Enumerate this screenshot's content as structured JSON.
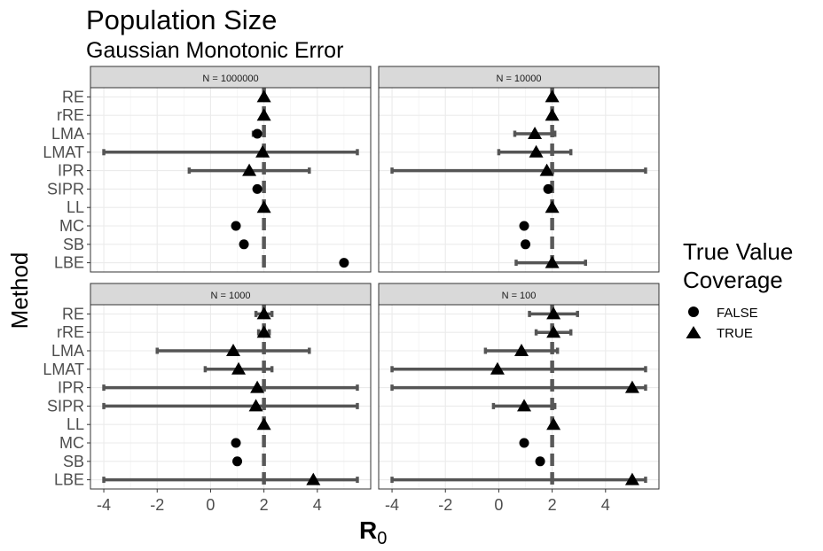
{
  "chart_data": {
    "type": "scatter",
    "title": "Population Size",
    "subtitle": "Gaussian Monotonic Error",
    "xlabel_main": "R",
    "xlabel_sub": "0",
    "ylabel": "Method",
    "xlim": [
      -4.5,
      6.0
    ],
    "x_ticks": [
      -4,
      -2,
      0,
      2,
      4
    ],
    "true_value": 2,
    "grid": true,
    "legend": {
      "title_line1": "True Value",
      "title_line2": "Coverage",
      "placement": "right",
      "items": [
        {
          "label": "FALSE",
          "shape": "circle"
        },
        {
          "label": "TRUE",
          "shape": "triangle"
        }
      ]
    },
    "methods": [
      "RE",
      "rRE",
      "LMA",
      "LMAT",
      "IPR",
      "SIPR",
      "LL",
      "MC",
      "SB",
      "LBE"
    ],
    "panels": [
      {
        "strip": "N = 1000000",
        "rows": [
          {
            "method": "RE",
            "est": 2.0,
            "lo": 2.0,
            "hi": 2.0,
            "coverage": true
          },
          {
            "method": "rRE",
            "est": 2.0,
            "lo": 2.0,
            "hi": 2.0,
            "coverage": true
          },
          {
            "method": "LMA",
            "est": 1.75,
            "lo": 1.6,
            "hi": 2.0,
            "coverage": false
          },
          {
            "method": "LMAT",
            "est": 1.95,
            "lo": -4.0,
            "hi": 5.5,
            "coverage": true
          },
          {
            "method": "IPR",
            "est": 1.45,
            "lo": -0.8,
            "hi": 3.7,
            "coverage": true
          },
          {
            "method": "SIPR",
            "est": 1.75,
            "lo": 1.75,
            "hi": 2.0,
            "coverage": false
          },
          {
            "method": "LL",
            "est": 2.0,
            "lo": 2.0,
            "hi": 2.0,
            "coverage": true
          },
          {
            "method": "MC",
            "est": 0.95,
            "lo": 0.95,
            "hi": 0.95,
            "coverage": false
          },
          {
            "method": "SB",
            "est": 1.25,
            "lo": 1.25,
            "hi": 1.25,
            "coverage": false
          },
          {
            "method": "LBE",
            "est": 5.0,
            "lo": 5.0,
            "hi": 5.0,
            "coverage": false
          }
        ]
      },
      {
        "strip": "N = 10000",
        "rows": [
          {
            "method": "RE",
            "est": 2.0,
            "lo": 2.0,
            "hi": 2.0,
            "coverage": true
          },
          {
            "method": "rRE",
            "est": 2.0,
            "lo": 2.0,
            "hi": 2.0,
            "coverage": true
          },
          {
            "method": "LMA",
            "est": 1.35,
            "lo": 0.6,
            "hi": 2.1,
            "coverage": true
          },
          {
            "method": "LMAT",
            "est": 1.4,
            "lo": 0.0,
            "hi": 2.7,
            "coverage": true
          },
          {
            "method": "IPR",
            "est": 1.8,
            "lo": -4.0,
            "hi": 5.5,
            "coverage": true
          },
          {
            "method": "SIPR",
            "est": 1.85,
            "lo": 1.85,
            "hi": 1.95,
            "coverage": false
          },
          {
            "method": "LL",
            "est": 2.0,
            "lo": 2.0,
            "hi": 2.0,
            "coverage": true
          },
          {
            "method": "MC",
            "est": 0.95,
            "lo": 0.95,
            "hi": 0.95,
            "coverage": false
          },
          {
            "method": "SB",
            "est": 1.0,
            "lo": 1.0,
            "hi": 1.0,
            "coverage": false
          },
          {
            "method": "LBE",
            "est": 2.0,
            "lo": 0.65,
            "hi": 3.25,
            "coverage": true
          }
        ]
      },
      {
        "strip": "N = 1000",
        "rows": [
          {
            "method": "RE",
            "est": 2.0,
            "lo": 1.7,
            "hi": 2.3,
            "coverage": true
          },
          {
            "method": "rRE",
            "est": 2.0,
            "lo": 1.8,
            "hi": 2.2,
            "coverage": true
          },
          {
            "method": "LMA",
            "est": 0.85,
            "lo": -2.0,
            "hi": 3.7,
            "coverage": true
          },
          {
            "method": "LMAT",
            "est": 1.05,
            "lo": -0.2,
            "hi": 2.3,
            "coverage": true
          },
          {
            "method": "IPR",
            "est": 1.75,
            "lo": -4.0,
            "hi": 5.5,
            "coverage": true
          },
          {
            "method": "SIPR",
            "est": 1.7,
            "lo": -4.0,
            "hi": 5.5,
            "coverage": true
          },
          {
            "method": "LL",
            "est": 2.0,
            "lo": 2.0,
            "hi": 2.0,
            "coverage": true
          },
          {
            "method": "MC",
            "est": 0.95,
            "lo": 0.95,
            "hi": 0.95,
            "coverage": false
          },
          {
            "method": "SB",
            "est": 1.0,
            "lo": 1.0,
            "hi": 1.0,
            "coverage": false
          },
          {
            "method": "LBE",
            "est": 3.85,
            "lo": -4.0,
            "hi": 5.5,
            "coverage": true
          }
        ]
      },
      {
        "strip": "N = 100",
        "rows": [
          {
            "method": "RE",
            "est": 2.05,
            "lo": 1.15,
            "hi": 2.95,
            "coverage": true
          },
          {
            "method": "rRE",
            "est": 2.05,
            "lo": 1.4,
            "hi": 2.7,
            "coverage": true
          },
          {
            "method": "LMA",
            "est": 0.85,
            "lo": -0.5,
            "hi": 2.2,
            "coverage": true
          },
          {
            "method": "LMAT",
            "est": -0.05,
            "lo": -4.0,
            "hi": 5.5,
            "coverage": true
          },
          {
            "method": "IPR",
            "est": 5.0,
            "lo": -4.0,
            "hi": 5.5,
            "coverage": true
          },
          {
            "method": "SIPR",
            "est": 0.95,
            "lo": -0.2,
            "hi": 2.1,
            "coverage": true
          },
          {
            "method": "LL",
            "est": 2.05,
            "lo": 2.05,
            "hi": 2.05,
            "coverage": true
          },
          {
            "method": "MC",
            "est": 0.95,
            "lo": 0.95,
            "hi": 0.95,
            "coverage": false
          },
          {
            "method": "SB",
            "est": 1.55,
            "lo": 1.55,
            "hi": 1.55,
            "coverage": false
          },
          {
            "method": "LBE",
            "est": 5.0,
            "lo": -4.0,
            "hi": 5.5,
            "coverage": true
          }
        ]
      }
    ]
  }
}
